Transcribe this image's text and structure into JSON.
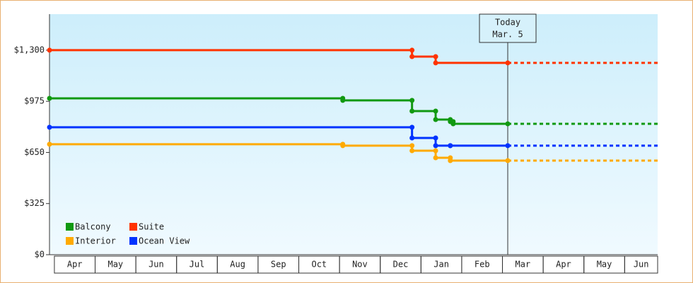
{
  "chart_data": {
    "type": "line",
    "categories": [
      "Apr",
      "May",
      "Jun",
      "Jul",
      "Aug",
      "Sep",
      "Oct",
      "Nov",
      "Dec",
      "Jan",
      "Feb",
      "Mar",
      "Apr",
      "May",
      "Jun"
    ],
    "xlim": [
      -0.12,
      14.81
    ],
    "ylim": [
      0,
      1529
    ],
    "yticks": [
      {
        "value": 0,
        "label": "$0"
      },
      {
        "value": 325,
        "label": "$325"
      },
      {
        "value": 650,
        "label": "$650"
      },
      {
        "value": 975,
        "label": "$975"
      },
      {
        "value": 1300,
        "label": "$1,300"
      }
    ],
    "annotation": {
      "lines": [
        "Today",
        "Mar. 5"
      ],
      "x": 11.13
    },
    "series": [
      {
        "name": "Balcony",
        "color": "#119911",
        "x": [
          -0.12,
          7.08,
          7.08,
          8.78,
          8.78,
          9.36,
          9.36,
          9.72,
          9.72,
          9.79,
          9.79,
          11.13
        ],
        "values": [
          994,
          994,
          981,
          981,
          913,
          913,
          859,
          859,
          846,
          846,
          832,
          832
        ]
      },
      {
        "name": "Suite",
        "color": "#ff3300",
        "x": [
          -0.12,
          8.78,
          8.78,
          9.36,
          9.36,
          11.13
        ],
        "values": [
          1300,
          1300,
          1259,
          1259,
          1219,
          1219
        ]
      },
      {
        "name": "Interior",
        "color": "#ffaa00",
        "x": [
          -0.12,
          7.08,
          7.08,
          8.78,
          8.78,
          9.36,
          9.36,
          9.72,
          9.72,
          11.13
        ],
        "values": [
          702,
          702,
          693,
          693,
          661,
          661,
          616,
          616,
          598,
          598
        ]
      },
      {
        "name": "Ocean View",
        "color": "#0033ff",
        "x": [
          -0.12,
          8.78,
          8.78,
          9.36,
          9.36,
          9.72,
          9.72,
          11.13
        ],
        "values": [
          810,
          810,
          742,
          742,
          693,
          693,
          693,
          693
        ]
      }
    ]
  }
}
